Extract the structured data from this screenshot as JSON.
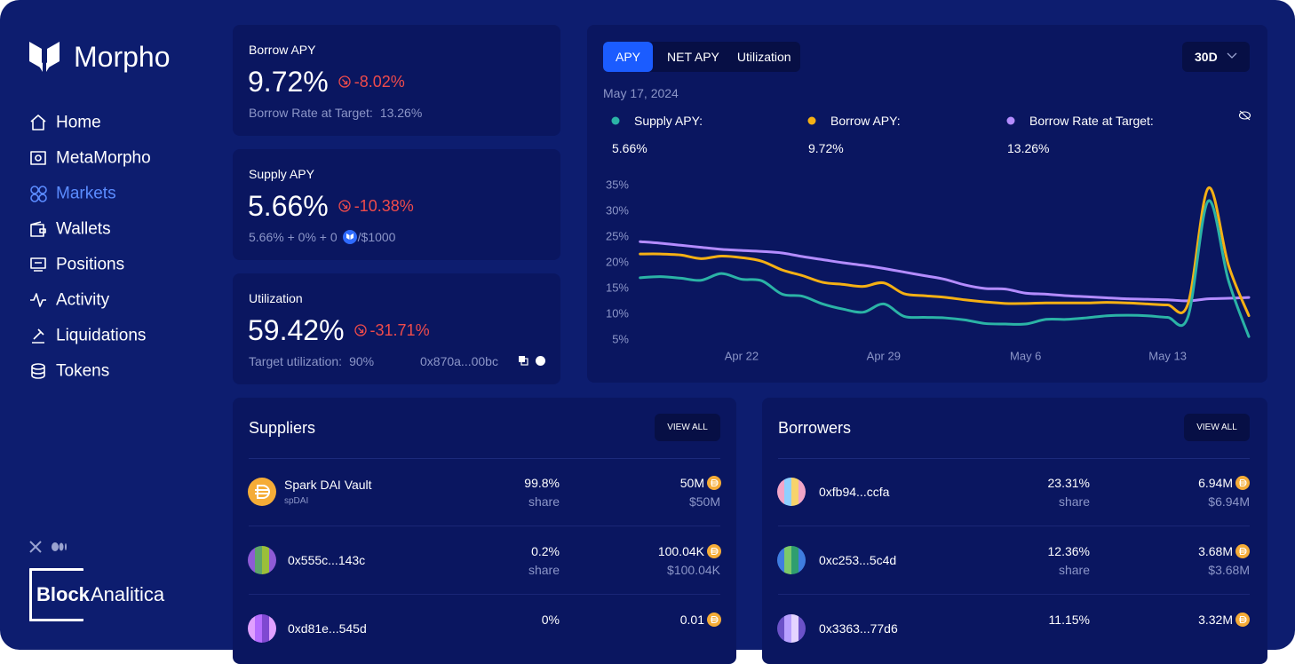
{
  "sidebar": {
    "brand": "Morpho",
    "nav": [
      "Home",
      "MetaMorpho",
      "Markets",
      "Wallets",
      "Positions",
      "Activity",
      "Liquidations",
      "Tokens"
    ],
    "active": 2,
    "partner": [
      "Block",
      "Analitica"
    ]
  },
  "stats": [
    {
      "label": "Borrow APY",
      "value": "9.72%",
      "change": "-8.02%",
      "note_label": "Borrow Rate at Target:",
      "note_value": "13.26%"
    },
    {
      "label": "Supply APY",
      "value": "5.66%",
      "change": "-10.38%",
      "note_label": "5.66% + 0% + 0",
      "note_value": "/$1000"
    },
    {
      "label": "Utilization",
      "value": "59.42%",
      "change": "-31.71%",
      "note_label": "Target utilization:",
      "note_value": "90%",
      "address": "0x870a...00bc"
    }
  ],
  "chart_panel": {
    "tabs": [
      "APY",
      "NET APY",
      "Utilization"
    ],
    "active_tab": 0,
    "range": "30D",
    "date": "May 17, 2024"
  },
  "chart_data": {
    "type": "line",
    "categories": [
      null,
      null,
      null,
      null,
      null,
      "Apr 22",
      null,
      null,
      null,
      null,
      null,
      null,
      "Apr 29",
      null,
      null,
      null,
      null,
      null,
      null,
      "May 6",
      null,
      null,
      null,
      null,
      null,
      null,
      "May 13",
      null,
      null,
      null,
      null
    ],
    "series": [
      {
        "name": "Supply APY:",
        "color": "#2bb3a6",
        "values": [
          17.1,
          17.3,
          17.0,
          16.6,
          17.9,
          16.8,
          16.5,
          13.9,
          13.5,
          12.0,
          11.0,
          10.4,
          12.0,
          9.6,
          9.4,
          9.3,
          8.9,
          8.2,
          8.1,
          8.1,
          9.0,
          9.0,
          9.3,
          9.7,
          9.8,
          9.7,
          9.4,
          9.5,
          32.0,
          16.5,
          5.66
        ]
      },
      {
        "name": "Borrow APY:",
        "color": "#f5b014",
        "values": [
          21.7,
          21.7,
          21.5,
          20.8,
          21.3,
          21.0,
          20.3,
          18.6,
          17.5,
          16.2,
          15.8,
          15.4,
          16.1,
          14.0,
          13.6,
          13.3,
          12.8,
          12.4,
          12.1,
          12.1,
          12.2,
          12.2,
          12.2,
          12.3,
          12.2,
          12.0,
          11.8,
          12.0,
          34.5,
          19.5,
          9.72
        ]
      },
      {
        "name": "Borrow Rate at Target:",
        "color": "#b48cff",
        "values": [
          24.1,
          23.8,
          23.4,
          23.0,
          22.6,
          22.4,
          22.2,
          21.9,
          21.2,
          20.6,
          20.0,
          19.5,
          18.9,
          18.2,
          17.5,
          16.8,
          15.7,
          15.0,
          14.9,
          14.1,
          13.9,
          13.6,
          13.4,
          13.2,
          13.0,
          12.9,
          12.8,
          12.6,
          13.0,
          13.1,
          13.26
        ]
      }
    ],
    "legend_values": [
      "5.66%",
      "9.72%",
      "13.26%"
    ],
    "ylim": [
      0,
      35
    ],
    "yticks": [
      {
        "value": 5,
        "label": "5%"
      },
      {
        "value": 10,
        "label": "10%"
      },
      {
        "value": 15,
        "label": "15%"
      },
      {
        "value": 20,
        "label": "20%"
      },
      {
        "value": 25,
        "label": "25%"
      },
      {
        "value": 30,
        "label": "30%"
      },
      {
        "value": 35,
        "label": "35%"
      }
    ],
    "grid": false
  },
  "tables": [
    {
      "title": "Suppliers",
      "action": "VIEW ALL",
      "rows": [
        {
          "name": "Spark DAI Vault",
          "symbol": "spDAI",
          "share": "99.8%",
          "share_caption": "share",
          "amount": "50M",
          "amount_usd": "$50M"
        },
        {
          "name": "0x555c...143c",
          "share": "0.2%",
          "share_caption": "share",
          "amount": "100.04K",
          "amount_usd": "$100.04K"
        },
        {
          "name": "0xd81e...545d",
          "share": "0%",
          "amount": "0.01"
        }
      ]
    },
    {
      "title": "Borrowers",
      "action": "VIEW ALL",
      "rows": [
        {
          "name": "0xfb94...ccfa",
          "share": "23.31%",
          "share_caption": "share",
          "amount": "6.94M",
          "amount_usd": "$6.94M"
        },
        {
          "name": "0xc253...5c4d",
          "share": "12.36%",
          "share_caption": "share",
          "amount": "3.68M",
          "amount_usd": "$3.68M"
        },
        {
          "name": "0x3363...77d6",
          "share": "11.15%",
          "amount": "3.32M"
        }
      ]
    }
  ]
}
